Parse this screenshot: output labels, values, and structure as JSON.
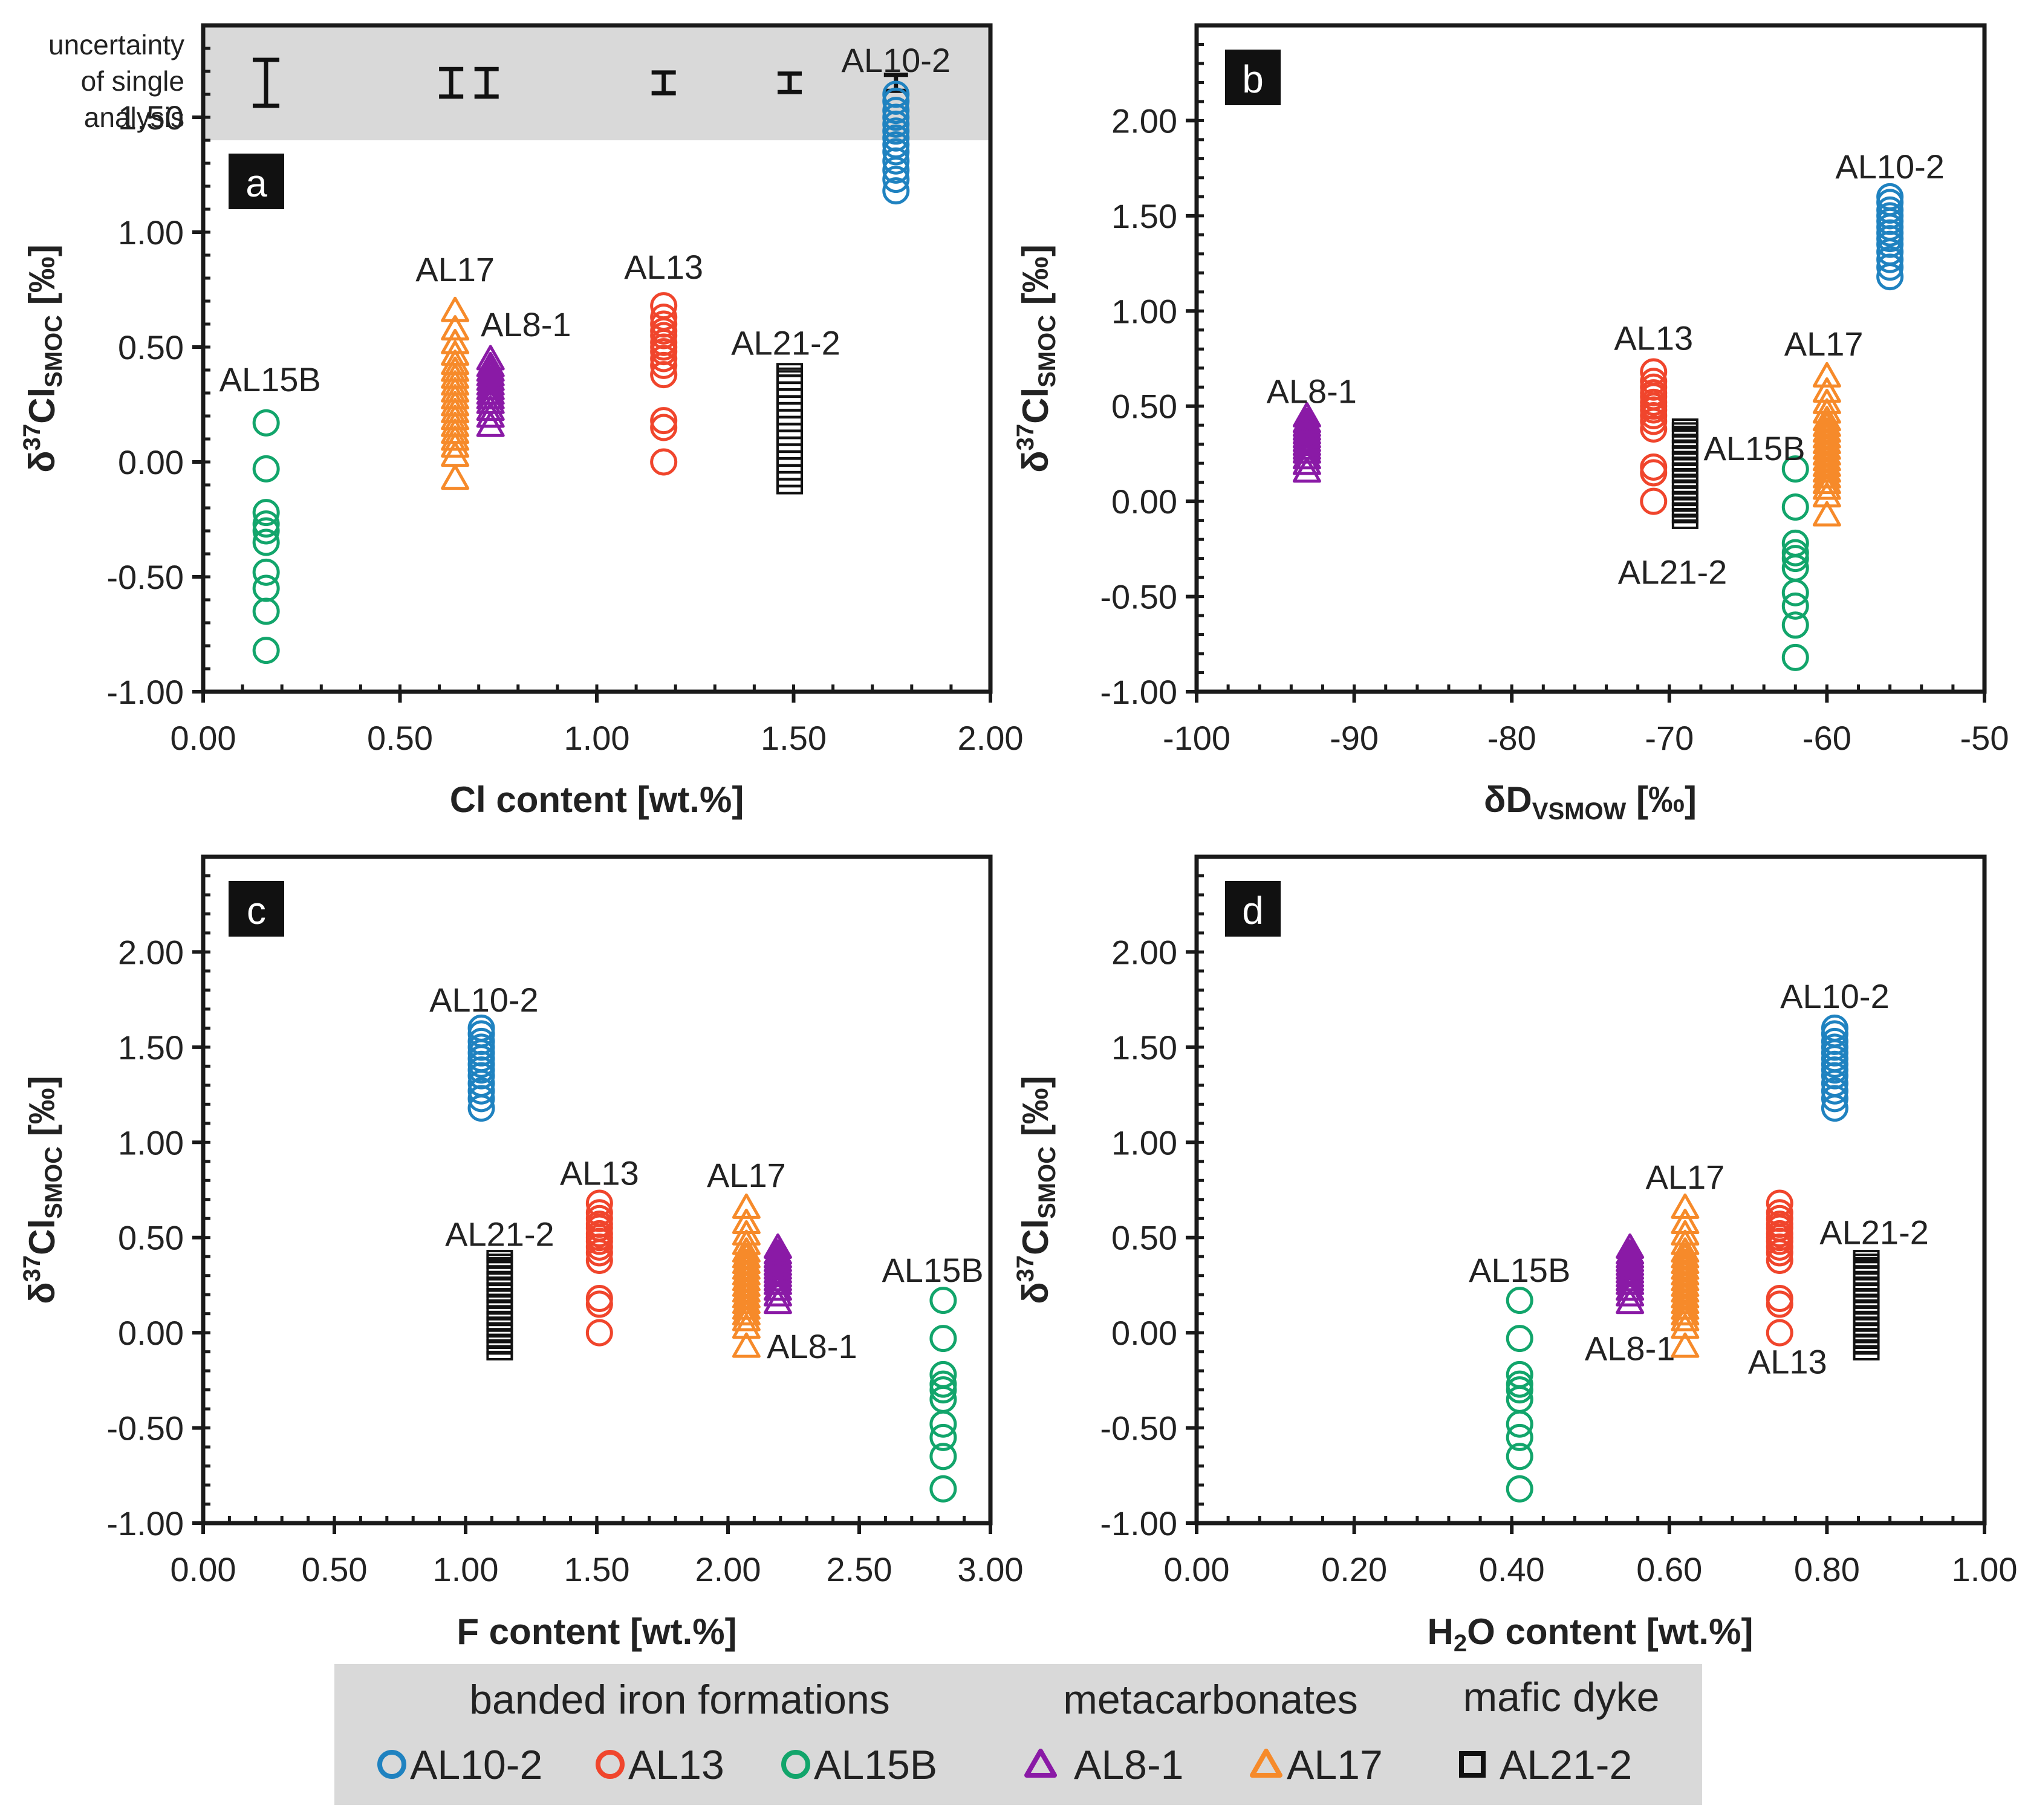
{
  "colors": {
    "AL10-2": "#1f82c0",
    "AL13": "#f0452c",
    "AL15B": "#12a56b",
    "AL8-1": "#8a1aa6",
    "AL17": "#f68a2a",
    "AL21-2": "#111111",
    "panel_gray": "#d9d9d9"
  },
  "uncertainty": {
    "label": [
      "uncertainty",
      "of single",
      "analysis"
    ],
    "scale_value": 0.2,
    "bars": [
      {
        "x": 0.63,
        "half": 0.06
      },
      {
        "x": 0.72,
        "half": 0.06
      },
      {
        "x": 1.17,
        "half": 0.045
      },
      {
        "x": 1.49,
        "half": 0.04
      },
      {
        "x": 1.76,
        "half": 0.035
      }
    ]
  },
  "samples": {
    "AL10-2": [
      1.18,
      1.23,
      1.27,
      1.31,
      1.35,
      1.38,
      1.41,
      1.44,
      1.47,
      1.5,
      1.53,
      1.57,
      1.6
    ],
    "AL13": [
      0.0,
      0.15,
      0.18,
      0.38,
      0.42,
      0.45,
      0.48,
      0.5,
      0.52,
      0.55,
      0.57,
      0.6,
      0.63,
      0.68
    ],
    "AL15B": [
      -0.82,
      -0.65,
      -0.55,
      -0.48,
      -0.35,
      -0.3,
      -0.27,
      -0.22,
      -0.03,
      0.17
    ],
    "AL8-1": [
      0.16,
      0.2,
      0.23,
      0.26,
      0.28,
      0.3,
      0.32,
      0.34,
      0.36,
      0.38,
      0.4,
      0.42,
      0.45
    ],
    "AL17": [
      -0.07,
      0.03,
      0.07,
      0.1,
      0.13,
      0.16,
      0.19,
      0.22,
      0.25,
      0.28,
      0.31,
      0.34,
      0.37,
      0.4,
      0.43,
      0.47,
      0.52,
      0.58,
      0.66
    ],
    "AL21-2": [
      -0.12,
      -0.09,
      -0.06,
      -0.03,
      0.0,
      0.03,
      0.06,
      0.09,
      0.12,
      0.15,
      0.18,
      0.21,
      0.24,
      0.27,
      0.3,
      0.33,
      0.36,
      0.39,
      0.41
    ]
  },
  "chart_data": [
    {
      "type": "scatter",
      "panel": "a",
      "xlabel": "Cl content [wt.%]",
      "ylabel": "δ37ClSMOC [‰]",
      "xlim": [
        0,
        2
      ],
      "ylim": [
        -1,
        1.9
      ],
      "xticks": [
        0,
        0.5,
        1,
        1.5,
        2
      ],
      "xtick_labels": [
        "0.00",
        "0.50",
        "1.00",
        "1.50",
        "2.00"
      ],
      "yticks": [
        -1,
        -0.5,
        0,
        0.5,
        1,
        1.5
      ],
      "ytick_labels": [
        "-1.00",
        "-0.50",
        "0.00",
        "0.50",
        "1.00",
        "1.50"
      ],
      "has_uncertainty_band": true,
      "series": [
        {
          "name": "AL10-2",
          "x": 1.76
        },
        {
          "name": "AL13",
          "x": 1.17
        },
        {
          "name": "AL15B",
          "x": 0.16
        },
        {
          "name": "AL8-1",
          "x": 0.73
        },
        {
          "name": "AL17",
          "x": 0.64
        },
        {
          "name": "AL21-2",
          "x": 1.49
        }
      ],
      "annotations": [
        {
          "text": "AL10-2",
          "x": 1.76,
          "y": 1.75
        },
        {
          "text": "AL13",
          "x": 1.17,
          "y": 0.85
        },
        {
          "text": "AL15B",
          "x": 0.17,
          "y": 0.36
        },
        {
          "text": "AL8-1",
          "x": 0.82,
          "y": 0.6
        },
        {
          "text": "AL17",
          "x": 0.64,
          "y": 0.84
        },
        {
          "text": "AL21-2",
          "x": 1.48,
          "y": 0.52
        }
      ]
    },
    {
      "type": "scatter",
      "panel": "b",
      "xlabel": "δDVSMOW [‰]",
      "ylabel": "δ37ClSMOC [‰]",
      "xlim": [
        -100,
        -50
      ],
      "ylim": [
        -1,
        2.5
      ],
      "xticks": [
        -100,
        -90,
        -80,
        -70,
        -60,
        -50
      ],
      "xtick_labels": [
        "-100",
        "-90",
        "-80",
        "-70",
        "-60",
        "-50"
      ],
      "yticks": [
        -1,
        -0.5,
        0,
        0.5,
        1,
        1.5,
        2
      ],
      "ytick_labels": [
        "-1.00",
        "-0.50",
        "0.00",
        "0.50",
        "1.00",
        "1.50",
        "2.00"
      ],
      "has_uncertainty_band": false,
      "series": [
        {
          "name": "AL10-2",
          "x": -56
        },
        {
          "name": "AL13",
          "x": -71
        },
        {
          "name": "AL15B",
          "x": -62
        },
        {
          "name": "AL8-1",
          "x": -93
        },
        {
          "name": "AL17",
          "x": -60
        },
        {
          "name": "AL21-2",
          "x": -69
        }
      ],
      "annotations": [
        {
          "text": "AL10-2",
          "x": -56,
          "y": 1.76
        },
        {
          "text": "AL13",
          "x": -71,
          "y": 0.86
        },
        {
          "text": "AL15B",
          "x": -64.6,
          "y": 0.28
        },
        {
          "text": "AL8-1",
          "x": -92.7,
          "y": 0.58
        },
        {
          "text": "AL17",
          "x": -60.2,
          "y": 0.83
        },
        {
          "text": "AL21-2",
          "x": -69.8,
          "y": -0.37
        }
      ]
    },
    {
      "type": "scatter",
      "panel": "c",
      "xlabel": "F content [wt.%]",
      "ylabel": "δ37ClSMOC [‰]",
      "xlim": [
        0,
        3
      ],
      "ylim": [
        -1,
        2.5
      ],
      "xticks": [
        0,
        0.5,
        1,
        1.5,
        2,
        2.5,
        3
      ],
      "xtick_labels": [
        "0.00",
        "0.50",
        "1.00",
        "1.50",
        "2.00",
        "2.50",
        "3.00"
      ],
      "yticks": [
        -1,
        -0.5,
        0,
        0.5,
        1,
        1.5,
        2
      ],
      "ytick_labels": [
        "-1.00",
        "-0.50",
        "0.00",
        "0.50",
        "1.00",
        "1.50",
        "2.00"
      ],
      "has_uncertainty_band": false,
      "series": [
        {
          "name": "AL10-2",
          "x": 1.06
        },
        {
          "name": "AL13",
          "x": 1.51
        },
        {
          "name": "AL15B",
          "x": 2.82
        },
        {
          "name": "AL8-1",
          "x": 2.19
        },
        {
          "name": "AL17",
          "x": 2.07
        },
        {
          "name": "AL21-2",
          "x": 1.13
        }
      ],
      "annotations": [
        {
          "text": "AL10-2",
          "x": 1.07,
          "y": 1.75
        },
        {
          "text": "AL13",
          "x": 1.51,
          "y": 0.84
        },
        {
          "text": "AL15B",
          "x": 2.78,
          "y": 0.33
        },
        {
          "text": "AL8-1",
          "x": 2.32,
          "y": -0.07
        },
        {
          "text": "AL17",
          "x": 2.07,
          "y": 0.83
        },
        {
          "text": "AL21-2",
          "x": 1.13,
          "y": 0.52
        }
      ]
    },
    {
      "type": "scatter",
      "panel": "d",
      "xlabel": "H2O content [wt.%]",
      "ylabel": "δ37ClSMOC [‰]",
      "xlim": [
        0,
        1
      ],
      "ylim": [
        -1,
        2.5
      ],
      "xticks": [
        0,
        0.2,
        0.4,
        0.6,
        0.8,
        1
      ],
      "xtick_labels": [
        "0.00",
        "0.20",
        "0.40",
        "0.60",
        "0.80",
        "1.00"
      ],
      "yticks": [
        -1,
        -0.5,
        0,
        0.5,
        1,
        1.5,
        2
      ],
      "ytick_labels": [
        "-1.00",
        "-0.50",
        "0.00",
        "0.50",
        "1.00",
        "1.50",
        "2.00"
      ],
      "has_uncertainty_band": false,
      "series": [
        {
          "name": "AL10-2",
          "x": 0.81
        },
        {
          "name": "AL13",
          "x": 0.74
        },
        {
          "name": "AL15B",
          "x": 0.41
        },
        {
          "name": "AL8-1",
          "x": 0.55
        },
        {
          "name": "AL17",
          "x": 0.62
        },
        {
          "name": "AL21-2",
          "x": 0.85
        }
      ],
      "annotations": [
        {
          "text": "AL10-2",
          "x": 0.81,
          "y": 1.77
        },
        {
          "text": "AL13",
          "x": 0.75,
          "y": -0.15
        },
        {
          "text": "AL15B",
          "x": 0.41,
          "y": 0.33
        },
        {
          "text": "AL8-1",
          "x": 0.55,
          "y": -0.08
        },
        {
          "text": "AL17",
          "x": 0.62,
          "y": 0.82
        },
        {
          "text": "AL21-2",
          "x": 0.86,
          "y": 0.53
        }
      ]
    }
  ],
  "legend": {
    "groups": [
      {
        "title": "banded iron formations",
        "items": [
          {
            "label": "AL10-2",
            "marker": "circle"
          },
          {
            "label": "AL13",
            "marker": "circle"
          },
          {
            "label": "AL15B",
            "marker": "circle"
          }
        ]
      },
      {
        "title": "metacarbonates",
        "items": [
          {
            "label": "AL8-1",
            "marker": "triangle"
          },
          {
            "label": "AL17",
            "marker": "triangle"
          }
        ]
      },
      {
        "title": "mafic dyke",
        "items": [
          {
            "label": "AL21-2",
            "marker": "square"
          }
        ]
      }
    ]
  }
}
